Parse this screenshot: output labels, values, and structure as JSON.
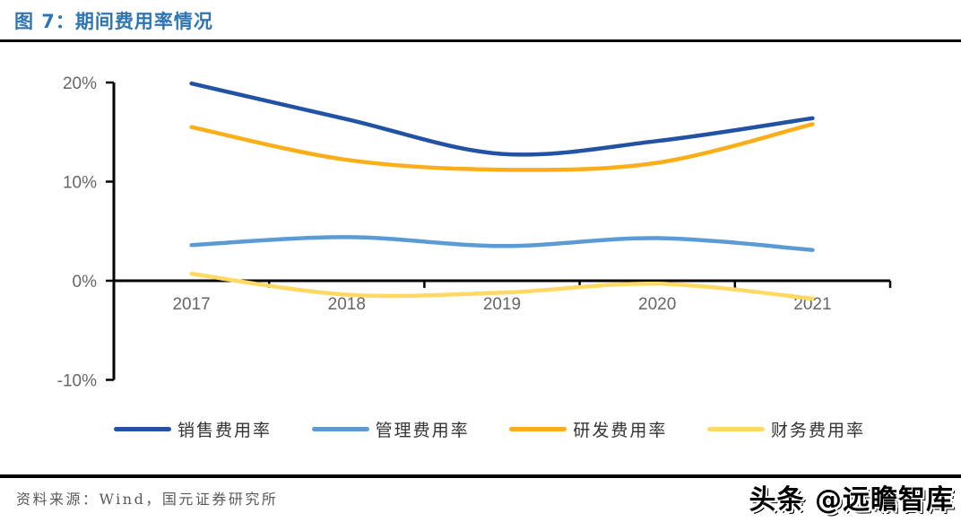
{
  "header": {
    "title": "图 7：期间费用率情况"
  },
  "footer": {
    "source": "资料来源：Wind，国元证券研究所",
    "watermark": "头条 @远瞻智库"
  },
  "chart_data": {
    "type": "line",
    "title": "期间费用率情况",
    "categories": [
      "2017",
      "2018",
      "2019",
      "2020",
      "2021"
    ],
    "series": [
      {
        "name": "销售费用率",
        "color": "#2152A3",
        "values": [
          19.9,
          16.3,
          12.8,
          14.1,
          16.4
        ]
      },
      {
        "name": "管理费用率",
        "color": "#5B9BD5",
        "values": [
          3.6,
          4.4,
          3.5,
          4.3,
          3.1
        ]
      },
      {
        "name": "研发费用率",
        "color": "#FAAE17",
        "values": [
          15.5,
          12.2,
          11.2,
          11.9,
          15.8
        ]
      },
      {
        "name": "财务费用率",
        "color": "#FFD964",
        "values": [
          0.7,
          -1.4,
          -1.2,
          -0.3,
          -1.8
        ]
      }
    ],
    "xlabel": "",
    "ylabel": "",
    "ylim": [
      -10,
      20
    ],
    "y_ticks": [
      {
        "label": "20%",
        "value": 20
      },
      {
        "label": "10%",
        "value": 10
      },
      {
        "label": "0%",
        "value": 0
      },
      {
        "label": "-10%",
        "value": -10
      }
    ],
    "grid": false,
    "legend_position": "bottom",
    "axis_color": "#000000",
    "tick_label_color": "#666666"
  }
}
